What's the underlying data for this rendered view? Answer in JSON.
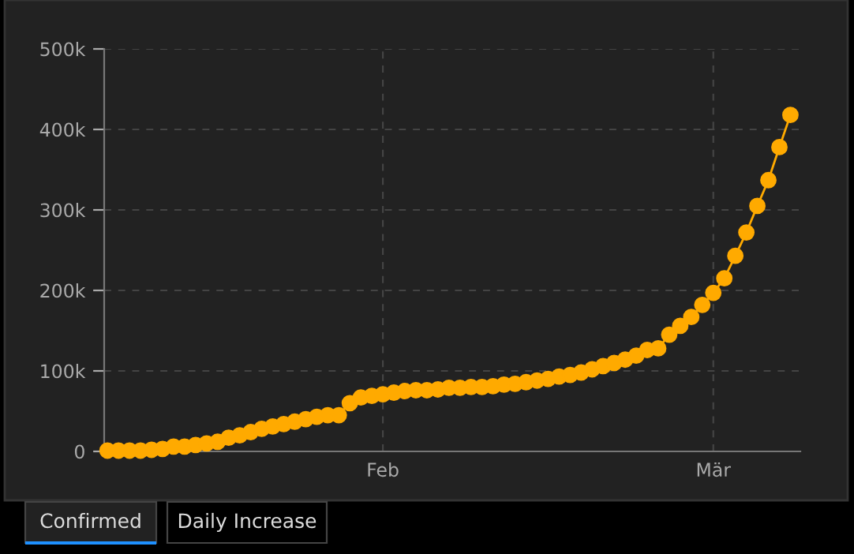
{
  "chart_data": {
    "type": "line",
    "categories": [
      null,
      null,
      null,
      null,
      null,
      null,
      null,
      null,
      null,
      null,
      null,
      null,
      null,
      null,
      null,
      null,
      null,
      null,
      null,
      null,
      null,
      null,
      null,
      null,
      null,
      "Feb",
      null,
      null,
      null,
      null,
      null,
      null,
      null,
      null,
      null,
      null,
      null,
      null,
      null,
      null,
      null,
      null,
      null,
      null,
      null,
      null,
      null,
      null,
      null,
      null,
      null,
      null,
      null,
      null,
      null,
      "Mär",
      null,
      null,
      null,
      null,
      null,
      null,
      null
    ],
    "series": [
      {
        "color": "#ffaa00",
        "values": [
          1000,
          1000,
          1000,
          1000,
          2000,
          3000,
          6000,
          6000,
          8000,
          10000,
          12000,
          17000,
          20000,
          24000,
          28000,
          31000,
          34000,
          37000,
          40000,
          43000,
          45000,
          45000,
          60000,
          67000,
          69000,
          71000,
          73000,
          75000,
          76000,
          76000,
          77000,
          79000,
          79000,
          80000,
          80000,
          81000,
          83000,
          84000,
          86000,
          88000,
          90000,
          93000,
          95000,
          98000,
          102000,
          106000,
          110000,
          114000,
          119000,
          126000,
          128000,
          145000,
          156000,
          167000,
          182000,
          197000,
          215000,
          243000,
          272000,
          305000,
          337000,
          378000,
          418000
        ]
      }
    ],
    "marker": "circle",
    "ylim": [
      0,
      500000
    ],
    "yticks": [
      {
        "value": 0,
        "label": "0"
      },
      {
        "value": 100000,
        "label": "100k"
      },
      {
        "value": 200000,
        "label": "200k"
      },
      {
        "value": 300000,
        "label": "300k"
      },
      {
        "value": 400000,
        "label": "400k"
      },
      {
        "value": 500000,
        "label": "500k"
      }
    ],
    "grid": true,
    "annotations": [
      "Confirmed",
      "Daily Increase"
    ]
  }
}
